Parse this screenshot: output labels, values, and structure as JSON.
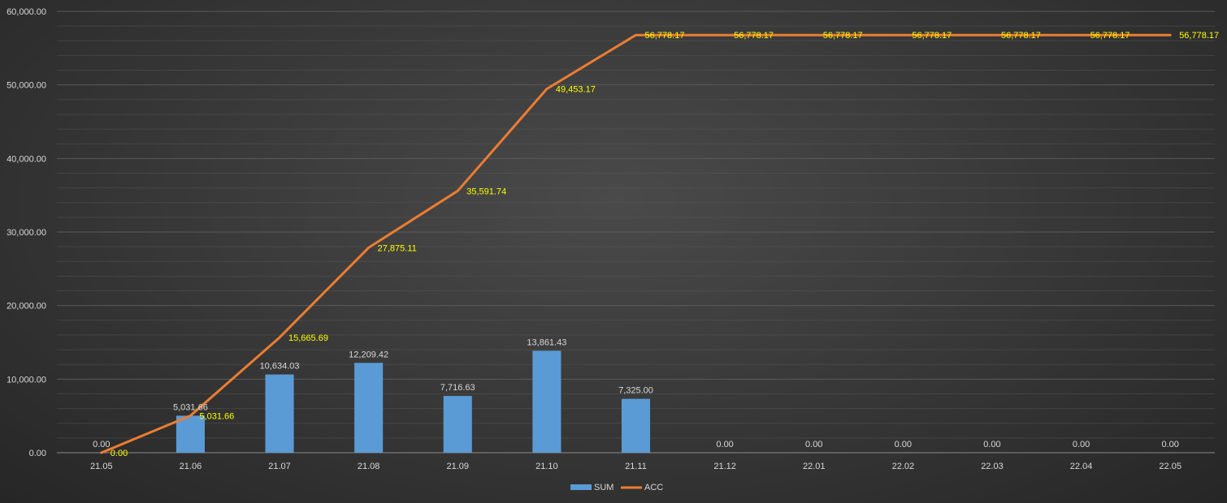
{
  "chart_data": {
    "type": "bar",
    "title": "",
    "xlabel": "",
    "ylabel": "",
    "categories": [
      "21.05",
      "21.06",
      "21.07",
      "21.08",
      "21.09",
      "21.10",
      "21.11",
      "21.12",
      "22.01",
      "22.02",
      "22.03",
      "22.04",
      "22.05"
    ],
    "ylim": [
      0,
      60000
    ],
    "yticks": [
      "0.00",
      "10,000.00",
      "20,000.00",
      "30,000.00",
      "40,000.00",
      "50,000.00",
      "60,000.00"
    ],
    "grid": true,
    "legend_position": "bottom",
    "series": [
      {
        "name": "SUM",
        "type": "bar",
        "color": "#5b9bd5",
        "values": [
          0,
          5031.66,
          10634.03,
          12209.42,
          7716.63,
          13861.43,
          7325.0,
          0,
          0,
          0,
          0,
          0,
          0
        ],
        "labels": [
          "0.00",
          "5,031.66",
          "10,634.03",
          "12,209.42",
          "7,716.63",
          "13,861.43",
          "7,325.00",
          "0.00",
          "0.00",
          "0.00",
          "0.00",
          "0.00",
          "0.00"
        ]
      },
      {
        "name": "ACC",
        "type": "line",
        "color": "#ed7d31",
        "label_color": "#ffff00",
        "values": [
          0,
          5031.66,
          15665.69,
          27875.11,
          35591.74,
          49453.17,
          56778.17,
          56778.17,
          56778.17,
          56778.17,
          56778.17,
          56778.17,
          56778.17
        ],
        "labels": [
          "0.00",
          "5,031.66",
          "15,665.69",
          "27,875.11",
          "35,591.74",
          "49,453.17",
          "56,778.17",
          "56,778.17",
          "56,778.17",
          "56,778.17",
          "56,778.17",
          "56,778.17",
          "56,778.17"
        ]
      }
    ]
  }
}
